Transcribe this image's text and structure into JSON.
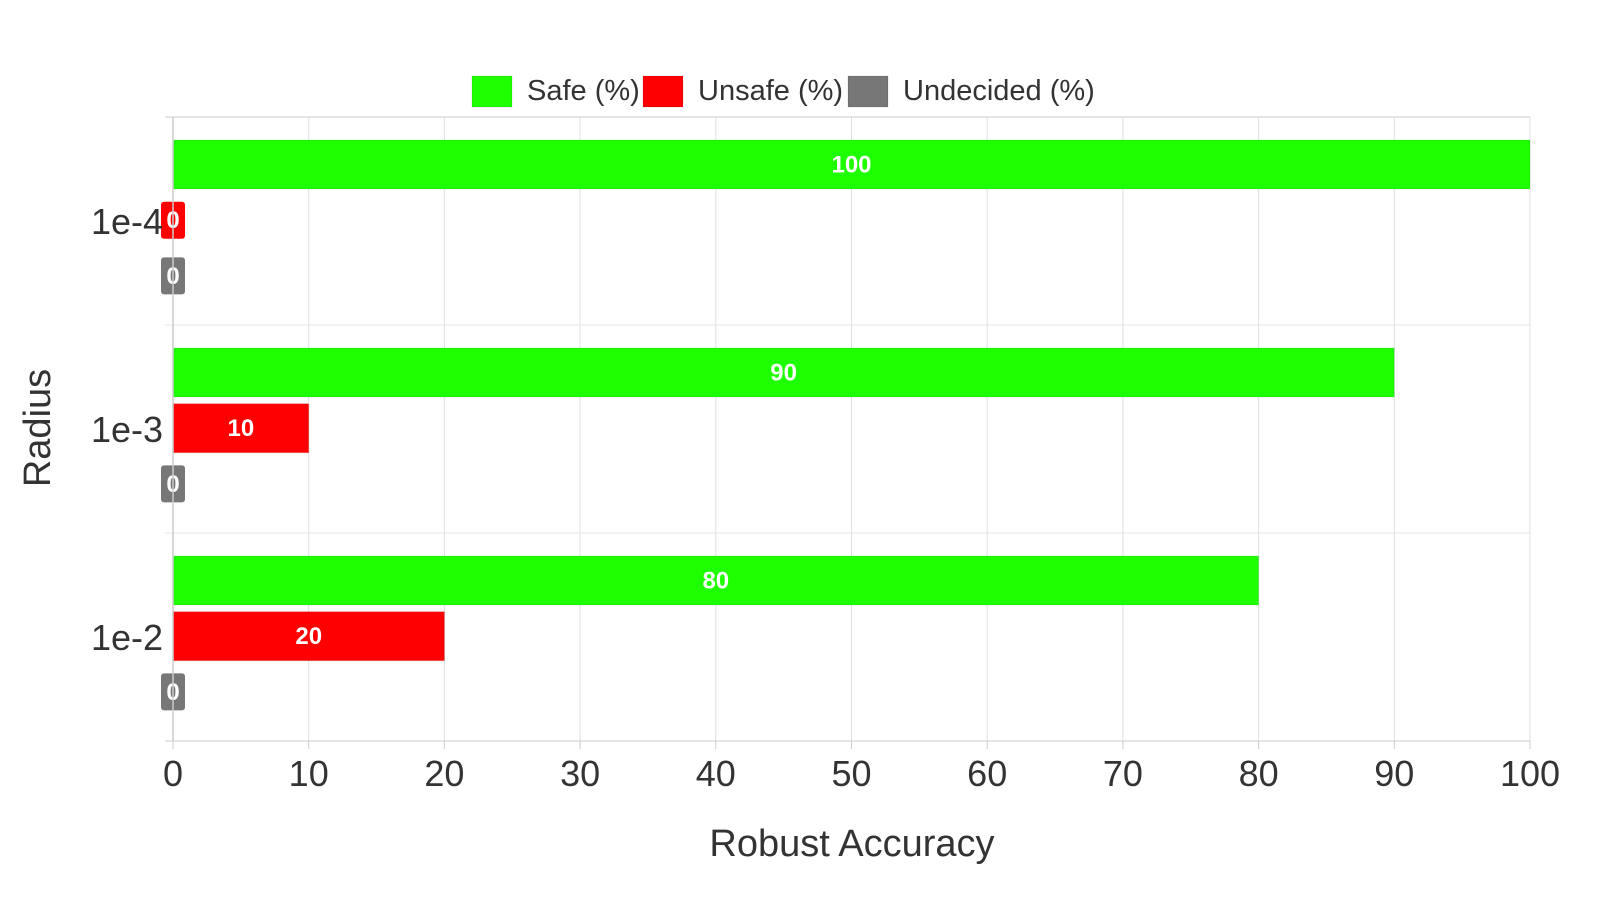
{
  "chart_data": {
    "type": "bar",
    "orientation": "horizontal",
    "categories": [
      "1e-4",
      "1e-3",
      "1e-2"
    ],
    "series": [
      {
        "name": "Safe (%)",
        "color": "#1eff00",
        "values": [
          100,
          90,
          80
        ]
      },
      {
        "name": "Unsafe (%)",
        "color": "#ff0000",
        "values": [
          0,
          10,
          20
        ]
      },
      {
        "name": "Undecided (%)",
        "color": "#777777",
        "values": [
          0,
          0,
          0
        ]
      }
    ],
    "xlabel": "Robust Accuracy",
    "ylabel": "Radius",
    "xlim": [
      0,
      100
    ],
    "xticks": [
      0,
      10,
      20,
      30,
      40,
      50,
      60,
      70,
      80,
      90,
      100
    ],
    "grid": true,
    "legend_position": "top-center",
    "data_labels": true
  }
}
